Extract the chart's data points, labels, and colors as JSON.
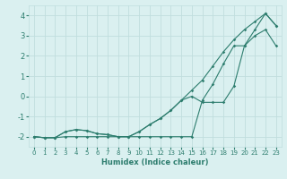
{
  "xlabel": "Humidex (Indice chaleur)",
  "x": [
    0,
    1,
    2,
    3,
    4,
    5,
    6,
    7,
    8,
    9,
    10,
    11,
    12,
    13,
    14,
    15,
    16,
    17,
    18,
    19,
    20,
    21,
    22,
    23
  ],
  "line1": [
    -2.0,
    -2.05,
    -2.05,
    -1.75,
    -1.65,
    -1.7,
    -1.85,
    -1.9,
    -2.0,
    -2.0,
    -1.75,
    -1.4,
    -1.1,
    -0.7,
    -0.2,
    0.3,
    0.8,
    1.5,
    2.2,
    2.8,
    3.3,
    3.7,
    4.1,
    3.5
  ],
  "line2": [
    -2.0,
    -2.05,
    -2.05,
    -1.75,
    -1.65,
    -1.7,
    -1.85,
    -1.9,
    -2.0,
    -2.0,
    -1.75,
    -1.4,
    -1.1,
    -0.7,
    -0.2,
    0.0,
    -0.3,
    -0.3,
    -0.3,
    0.5,
    2.5,
    3.3,
    4.1,
    3.5
  ],
  "line3": [
    -2.0,
    -2.05,
    -2.05,
    -2.0,
    -2.0,
    -2.0,
    -2.0,
    -2.0,
    -2.0,
    -2.0,
    -2.0,
    -2.0,
    -2.0,
    -2.0,
    -2.0,
    -2.0,
    -0.2,
    0.6,
    1.6,
    2.5,
    2.5,
    3.0,
    3.3,
    2.5
  ],
  "line_color": "#2d7d6e",
  "bg_color": "#daf0f0",
  "grid_color": "#c0dede",
  "ylim": [
    -2.5,
    4.5
  ],
  "xlim": [
    -0.5,
    23.5
  ],
  "yticks": [
    -2,
    -1,
    0,
    1,
    2,
    3,
    4
  ],
  "xticks": [
    0,
    1,
    2,
    3,
    4,
    5,
    6,
    7,
    8,
    9,
    10,
    11,
    12,
    13,
    14,
    15,
    16,
    17,
    18,
    19,
    20,
    21,
    22,
    23
  ]
}
